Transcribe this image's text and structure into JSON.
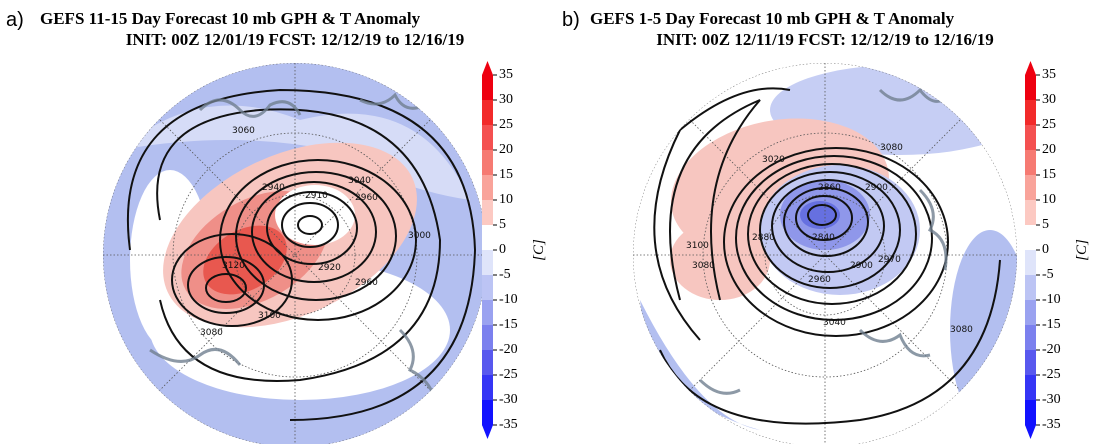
{
  "panels": [
    {
      "letter": "a)",
      "title": "GEFS 11-15 Day Forecast 10 mb GPH & T Anomaly",
      "subtitle": "INIT: 00Z 12/01/19    FCST: 12/12/19 to 12/16/19",
      "colorbar": {
        "ticks": [
          35,
          30,
          25,
          20,
          15,
          10,
          5,
          0,
          -5,
          -10,
          -15,
          -20,
          -25,
          -30,
          -35
        ],
        "unit": "[C]"
      },
      "contour_labels": [
        "3060",
        "2940",
        "2910",
        "2960",
        "3040",
        "3000",
        "2920",
        "2960",
        "3120",
        "3100",
        "3080"
      ]
    },
    {
      "letter": "b)",
      "title": "GEFS 1-5 Day Forecast 10 mb GPH & T Anomaly",
      "subtitle": "INIT: 00Z 12/11/19    FCST: 12/12/19 to 12/16/19",
      "colorbar": {
        "ticks": [
          35,
          30,
          25,
          20,
          15,
          10,
          5,
          0,
          -5,
          -10,
          -15,
          -20,
          -25,
          -30,
          -35
        ],
        "unit": "[C]"
      },
      "contour_labels": [
        "3080",
        "3020",
        "2860",
        "2900",
        "3100",
        "3080",
        "2840",
        "2880",
        "2900",
        "2970",
        "2960",
        "3040",
        "3080"
      ]
    }
  ]
}
